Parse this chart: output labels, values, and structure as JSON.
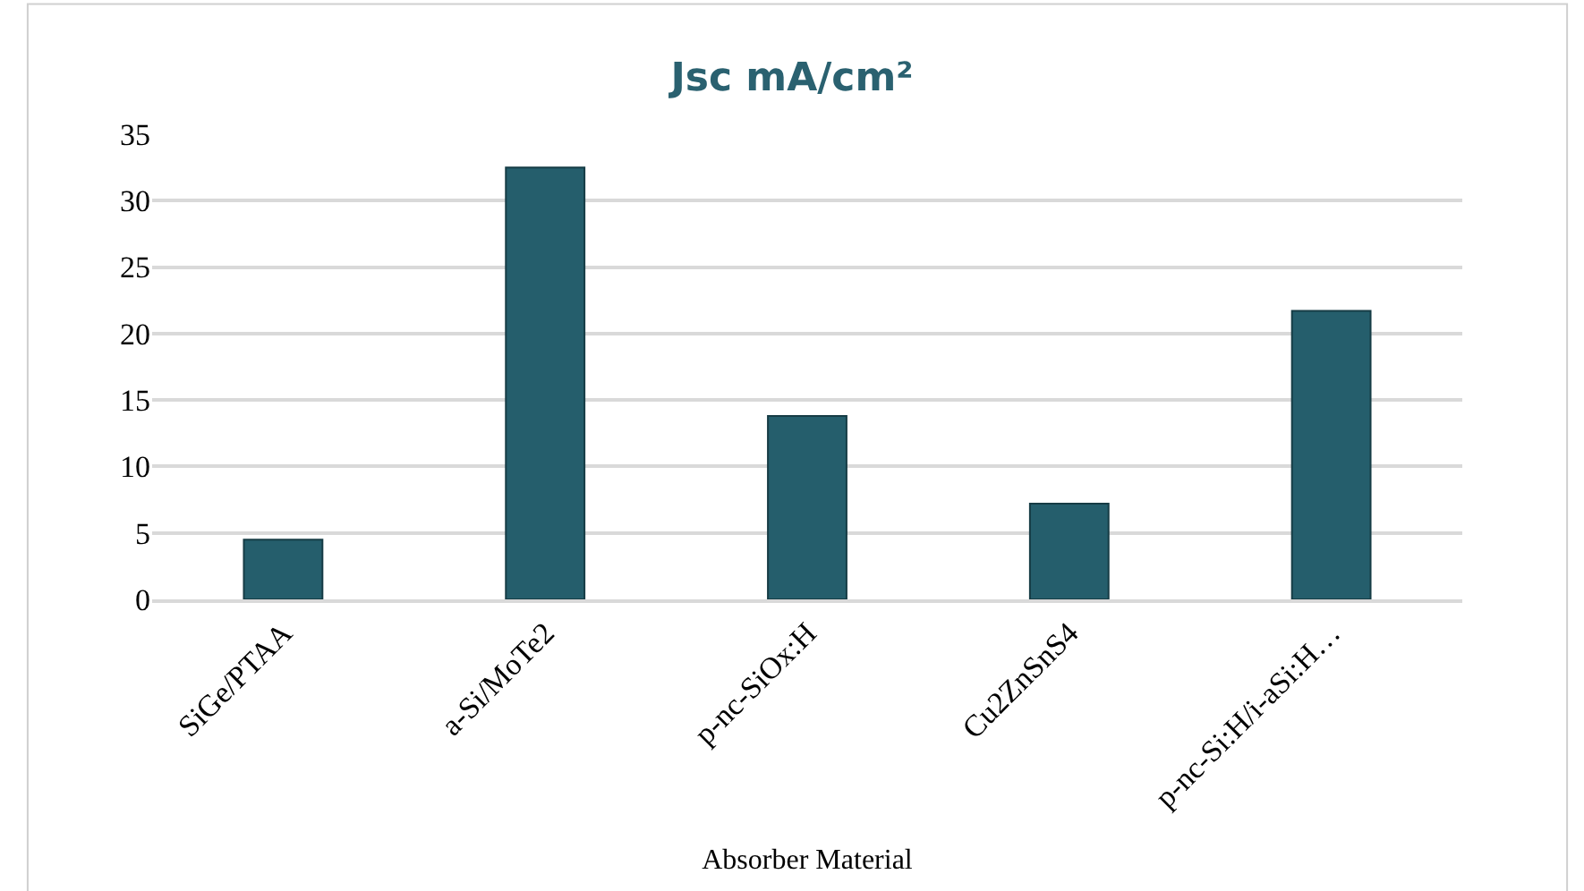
{
  "chart_data": {
    "type": "bar",
    "title": "Jsc mA/cm²",
    "xlabel": "Absorber Material",
    "categories": [
      "SiGe/PTAA",
      "a-Si/MoTe2",
      "p-nc-SiOx:H",
      "Cu2ZnSnS4",
      "p-nc-Si:H/i-aSi:H…"
    ],
    "values": [
      4.5,
      32.5,
      13.8,
      7.2,
      21.7
    ],
    "color": "#255e6c",
    "ylim": [
      0,
      35
    ],
    "yticks": [
      0,
      5,
      10,
      15,
      20,
      25,
      30,
      35
    ],
    "grid": "y",
    "legend": false
  }
}
